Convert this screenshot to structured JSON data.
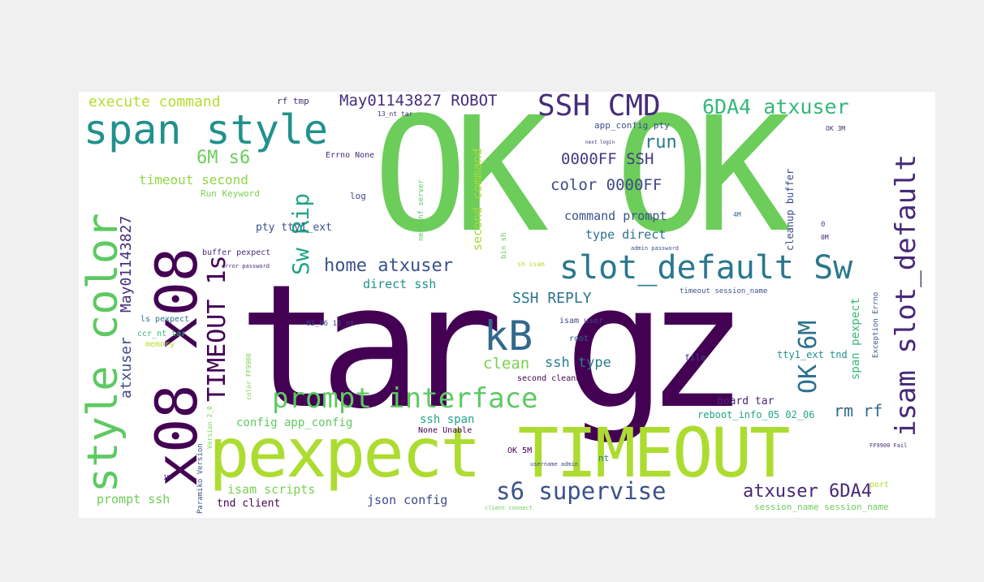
{
  "wordcloud": {
    "background": "#ffffff",
    "page_background": "#f0f0f0",
    "palette": "viridis",
    "words": [
      {
        "text": "tar gz",
        "color": "#440154"
      },
      {
        "text": "OK OK",
        "color": "#6ccd5a"
      },
      {
        "text": "pexpect TIMEOUT",
        "color": "#addc30"
      },
      {
        "text": "x08 x08",
        "color": "#440154"
      },
      {
        "text": "style color",
        "color": "#5ec962"
      },
      {
        "text": "span style",
        "color": "#21918c"
      },
      {
        "text": "slot_default Sw",
        "color": "#2a788e"
      },
      {
        "text": "prompt interface",
        "color": "#5ec962"
      },
      {
        "text": "isam slot_default",
        "color": "#482878"
      },
      {
        "text": "s6 supervise",
        "color": "#3b528b"
      },
      {
        "text": "SSH CMD",
        "color": "#472d7b"
      },
      {
        "text": "kB",
        "color": "#31688e"
      },
      {
        "text": "TIMEOUT 1s",
        "color": "#440154"
      },
      {
        "text": "OK 6M",
        "color": "#2c728e"
      },
      {
        "text": "atxuser 6DA4",
        "color": "#482878"
      },
      {
        "text": "6DA4 atxuser",
        "color": "#35b779"
      },
      {
        "text": "Sw Rip",
        "color": "#21a585"
      },
      {
        "text": "home atxuser",
        "color": "#3b528b"
      },
      {
        "text": "May01143827 ROBOT",
        "color": "#472d7b"
      },
      {
        "text": "6M s6",
        "color": "#6ccd5a"
      },
      {
        "text": "execute command",
        "color": "#b5de2b"
      },
      {
        "text": "May01143827",
        "color": "#472d7b"
      },
      {
        "text": "atxuser",
        "color": "#3e4989"
      },
      {
        "text": "run",
        "color": "#2a788e"
      },
      {
        "text": "0000FF SSH",
        "color": "#443983"
      },
      {
        "text": "color 0000FF",
        "color": "#3e4989"
      },
      {
        "text": "rm rf",
        "color": "#31688e"
      },
      {
        "text": "SSH REPLY",
        "color": "#2c728e"
      },
      {
        "text": "clean",
        "color": "#7ad151"
      },
      {
        "text": "ssh type",
        "color": "#287c8e"
      },
      {
        "text": "timeout second",
        "color": "#90d743"
      },
      {
        "text": "second command",
        "color": "#a5db36"
      },
      {
        "text": "command prompt",
        "color": "#3b528b"
      },
      {
        "text": "type direct",
        "color": "#2c728e"
      },
      {
        "text": "direct ssh",
        "color": "#21918c"
      },
      {
        "text": "span pexpect",
        "color": "#35b779"
      },
      {
        "text": "prompt ssh",
        "color": "#6ccd5a"
      },
      {
        "text": "isam scripts",
        "color": "#7ad151"
      },
      {
        "text": "json config",
        "color": "#3e4989"
      },
      {
        "text": "ssh span",
        "color": "#20a386"
      },
      {
        "text": "config app_config",
        "color": "#5ec962"
      },
      {
        "text": "pty tty1_ext",
        "color": "#3b528b"
      },
      {
        "text": "tnd client",
        "color": "#440154"
      },
      {
        "text": "board tar",
        "color": "#482878"
      },
      {
        "text": "cleanup buffer",
        "color": "#3e4989"
      },
      {
        "text": "tty1_ext tnd",
        "color": "#21918c"
      },
      {
        "text": "reboot_info_05 02_06",
        "color": "#22a884"
      },
      {
        "text": "session_name session_name",
        "color": "#6ccd5a"
      },
      {
        "text": "app_config pty",
        "color": "#3b528b"
      },
      {
        "text": "Run Keyword",
        "color": "#7ad151"
      },
      {
        "text": "rf tmp",
        "color": "#472d7b"
      },
      {
        "text": "Errno None",
        "color": "#472d7b"
      },
      {
        "text": "log",
        "color": "#3e4989"
      },
      {
        "text": "buffer pexpect",
        "color": "#472d7b"
      },
      {
        "text": "ls pexpect",
        "color": "#2c728e"
      },
      {
        "text": "ccr_nt tar",
        "color": "#35b779"
      },
      {
        "text": "memory",
        "color": "#b5de2b"
      },
      {
        "text": "isam user",
        "color": "#3e4989"
      },
      {
        "text": "root",
        "color": "#31688e"
      },
      {
        "text": "second cleanup",
        "color": "#440154"
      },
      {
        "text": "file",
        "color": "#3e4989"
      },
      {
        "text": "None Unable",
        "color": "#440154"
      },
      {
        "text": "OK 5M",
        "color": "#440154"
      },
      {
        "text": "nt",
        "color": "#2a788e"
      },
      {
        "text": "port",
        "color": "#addc30"
      },
      {
        "text": "timeout session_name",
        "color": "#3b528b"
      },
      {
        "text": "Exception Errno",
        "color": "#3b528b"
      },
      {
        "text": "netconf server",
        "color": "#5ec962"
      },
      {
        "text": "bin sh",
        "color": "#6ccd5a"
      },
      {
        "text": "sh isam",
        "color": "#b5de2b"
      },
      {
        "text": "Version 2_0",
        "color": "#7ad151"
      },
      {
        "text": "Paramiko Version",
        "color": "#3b528b"
      },
      {
        "text": "color FF9900",
        "color": "#7ad151"
      },
      {
        "text": "02_06 13_nt",
        "color": "#3e4989"
      },
      {
        "text": "13_nt tar",
        "color": "#472d7b"
      },
      {
        "text": "OK 3M",
        "color": "#472d7b"
      },
      {
        "text": "4M",
        "color": "#31688e"
      },
      {
        "text": "0M",
        "color": "#482878"
      },
      {
        "text": "admin password",
        "color": "#3b528b"
      },
      {
        "text": "error password",
        "color": "#482878"
      },
      {
        "text": "username admin",
        "color": "#3e4989"
      },
      {
        "text": "client connect",
        "color": "#6ccd5a"
      },
      {
        "text": "FF9900 Fail",
        "color": "#472d7b"
      },
      {
        "text": "1M",
        "color": "#482878"
      },
      {
        "text": "next login",
        "color": "#472d7b"
      },
      {
        "text": "0",
        "color": "#3e4989"
      }
    ]
  }
}
